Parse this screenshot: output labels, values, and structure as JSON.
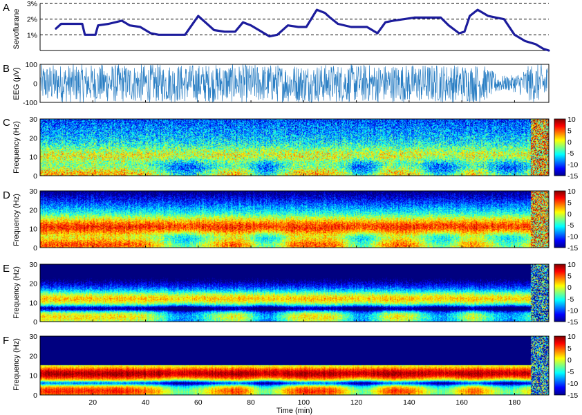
{
  "chart_data": [
    {
      "panel": "A",
      "type": "line",
      "ylabel": "Sevoflurane",
      "yticks": [
        "3%",
        "2%",
        "1%"
      ],
      "ytick_values": [
        3,
        2,
        1
      ],
      "gridlines": [
        1,
        2,
        3
      ],
      "ylim": [
        0,
        3
      ],
      "xlim": [
        0,
        193
      ],
      "color": "#1c1c9c",
      "series": [
        {
          "x": [
            6,
            8,
            16,
            17,
            21,
            22,
            26,
            31,
            34,
            38,
            42,
            45,
            50,
            55,
            60,
            66,
            70,
            74,
            77,
            80,
            84,
            87,
            90,
            94,
            98,
            101,
            105,
            108,
            110,
            113,
            118,
            124,
            126,
            128,
            131,
            134,
            138,
            142,
            147,
            152,
            155,
            159,
            161,
            163,
            166,
            170,
            173,
            176,
            180,
            184,
            188,
            191,
            193
          ],
          "y": [
            1.4,
            1.7,
            1.7,
            1.0,
            1.0,
            1.6,
            1.7,
            1.9,
            1.6,
            1.5,
            1.1,
            1.0,
            1.0,
            1.0,
            2.2,
            1.3,
            1.2,
            1.2,
            1.8,
            1.6,
            1.2,
            0.9,
            1.0,
            1.6,
            1.5,
            1.5,
            2.6,
            2.4,
            2.1,
            1.7,
            1.5,
            1.5,
            1.3,
            1.1,
            1.8,
            1.9,
            2.0,
            2.1,
            2.1,
            2.1,
            1.6,
            1.1,
            1.2,
            2.2,
            2.6,
            2.2,
            2.1,
            2.0,
            1.0,
            0.6,
            0.4,
            0.1,
            0.0
          ]
        }
      ]
    },
    {
      "panel": "B",
      "type": "line",
      "ylabel": "EEG (μV)",
      "yticks": [
        "100",
        "0",
        "-100"
      ],
      "ytick_values": [
        100,
        0,
        -100
      ],
      "ylim": [
        -100,
        100
      ],
      "xlim": [
        0,
        193
      ],
      "color": "#2b7fc4"
    },
    {
      "panel": "C",
      "type": "heatmap",
      "ylabel": "Frequency (Hz)",
      "yticks": [
        "30",
        "20",
        "10",
        "0"
      ],
      "ytick_values": [
        30,
        20,
        10,
        0
      ],
      "ylim": [
        0,
        30
      ],
      "xlim": [
        0,
        193
      ],
      "colorbar_ticks": [
        "10",
        "5",
        "0",
        "-5",
        "-10",
        "-15"
      ],
      "colorbar_values": [
        10,
        5,
        0,
        -5,
        -10,
        -15
      ],
      "clim": [
        -15,
        10
      ]
    },
    {
      "panel": "D",
      "type": "heatmap",
      "ylabel": "Frequency (Hz)",
      "yticks": [
        "30",
        "20",
        "10",
        "0"
      ],
      "ytick_values": [
        30,
        20,
        10,
        0
      ],
      "ylim": [
        0,
        30
      ],
      "xlim": [
        0,
        193
      ],
      "colorbar_ticks": [
        "10",
        "5",
        "0",
        "-5",
        "-10",
        "-15"
      ],
      "colorbar_values": [
        10,
        5,
        0,
        -5,
        -10,
        -15
      ],
      "clim": [
        -15,
        10
      ]
    },
    {
      "panel": "E",
      "type": "heatmap",
      "ylabel": "Frequency (Hz)",
      "yticks": [
        "30",
        "20",
        "10",
        "0"
      ],
      "ytick_values": [
        30,
        20,
        10,
        0
      ],
      "ylim": [
        0,
        30
      ],
      "xlim": [
        0,
        193
      ],
      "colorbar_ticks": [
        "10",
        "5",
        "0",
        "-5",
        "-10",
        "-15"
      ],
      "colorbar_values": [
        10,
        5,
        0,
        -5,
        -10,
        -15
      ],
      "clim": [
        -15,
        10
      ]
    },
    {
      "panel": "F",
      "type": "heatmap",
      "ylabel": "Frequency (Hz)",
      "yticks": [
        "30",
        "20",
        "10",
        "0"
      ],
      "ytick_values": [
        30,
        20,
        10,
        0
      ],
      "ylim": [
        0,
        30
      ],
      "xlim": [
        0,
        193
      ],
      "xlabel": "Time (min)",
      "xticks": [
        "20",
        "40",
        "60",
        "80",
        "100",
        "120",
        "140",
        "160",
        "180"
      ],
      "xtick_values": [
        20,
        40,
        60,
        80,
        100,
        120,
        140,
        160,
        180
      ],
      "colorbar_ticks": [
        "10",
        "5",
        "0",
        "-5",
        "-10",
        "-15"
      ],
      "colorbar_values": [
        10,
        5,
        0,
        -5,
        -10,
        -15
      ],
      "clim": [
        -15,
        10
      ]
    }
  ]
}
